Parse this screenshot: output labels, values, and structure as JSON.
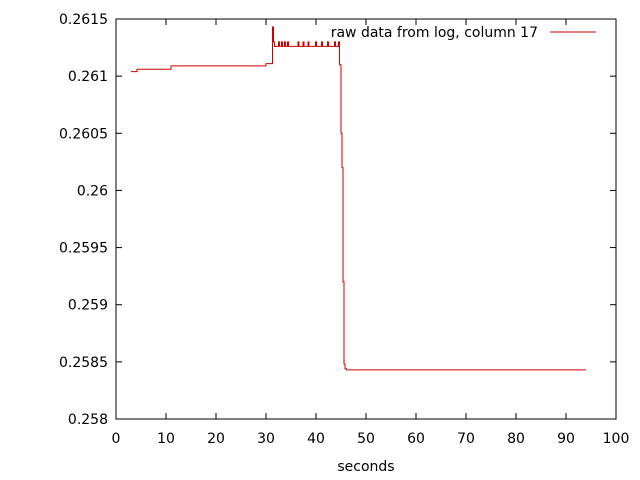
{
  "chart_data": {
    "type": "line",
    "title": "",
    "xlabel": "seconds",
    "ylabel": "",
    "xlim": [
      0,
      100
    ],
    "ylim": [
      0.258,
      0.2615
    ],
    "x_ticks": [
      0,
      10,
      20,
      30,
      40,
      50,
      60,
      70,
      80,
      90,
      100
    ],
    "x_tick_labels": [
      "0",
      "10",
      "20",
      "30",
      "40",
      "50",
      "60",
      "70",
      "80",
      "90",
      "100"
    ],
    "y_ticks": [
      0.258,
      0.2585,
      0.259,
      0.2595,
      0.26,
      0.2605,
      0.261,
      0.2615
    ],
    "y_tick_labels": [
      "0.258",
      "0.2585",
      "0.259",
      "0.2595",
      "0.26",
      "0.2605",
      "0.261",
      "0.2615"
    ],
    "grid": false,
    "legend_position": "top-right",
    "series": [
      {
        "name": "raw data from log, column 17",
        "color": "#cc0000",
        "x": [
          3.0,
          4.2,
          4.2,
          11.0,
          11.0,
          30.0,
          30.0,
          31.3,
          31.3,
          31.5,
          31.5,
          31.7,
          31.7,
          32.5,
          32.5,
          32.7,
          32.7,
          33.1,
          33.1,
          33.3,
          33.3,
          33.7,
          33.7,
          33.9,
          33.9,
          34.3,
          34.3,
          34.5,
          34.5,
          36.4,
          36.4,
          36.6,
          36.6,
          37.4,
          37.4,
          37.6,
          37.6,
          38.4,
          38.4,
          38.6,
          38.6,
          39.9,
          39.9,
          40.1,
          40.1,
          41.1,
          41.1,
          41.3,
          41.3,
          42.3,
          42.3,
          42.5,
          42.5,
          43.7,
          43.7,
          43.9,
          43.9,
          44.5,
          44.5,
          44.7,
          44.7,
          45.0,
          45.0,
          45.2,
          45.2,
          45.4,
          45.4,
          45.6,
          45.6,
          45.8,
          45.8,
          46.1,
          46.1,
          94.0
        ],
        "y": [
          0.26104,
          0.26104,
          0.26106,
          0.26106,
          0.26109,
          0.26109,
          0.26111,
          0.26111,
          0.26143,
          0.26143,
          0.2613,
          0.2613,
          0.26126,
          0.26126,
          0.2613,
          0.2613,
          0.26126,
          0.26126,
          0.2613,
          0.2613,
          0.26126,
          0.26126,
          0.2613,
          0.2613,
          0.26126,
          0.26126,
          0.2613,
          0.2613,
          0.26126,
          0.26126,
          0.2613,
          0.2613,
          0.26126,
          0.26126,
          0.2613,
          0.2613,
          0.26126,
          0.26126,
          0.2613,
          0.2613,
          0.26126,
          0.26126,
          0.2613,
          0.2613,
          0.26126,
          0.26126,
          0.2613,
          0.2613,
          0.26126,
          0.26126,
          0.2613,
          0.2613,
          0.26126,
          0.26126,
          0.2613,
          0.2613,
          0.26126,
          0.26126,
          0.2613,
          0.2613,
          0.2611,
          0.2611,
          0.2605,
          0.2605,
          0.2602,
          0.2602,
          0.2592,
          0.2592,
          0.25848,
          0.25848,
          0.25844,
          0.25844,
          0.25843,
          0.25843
        ]
      }
    ]
  }
}
